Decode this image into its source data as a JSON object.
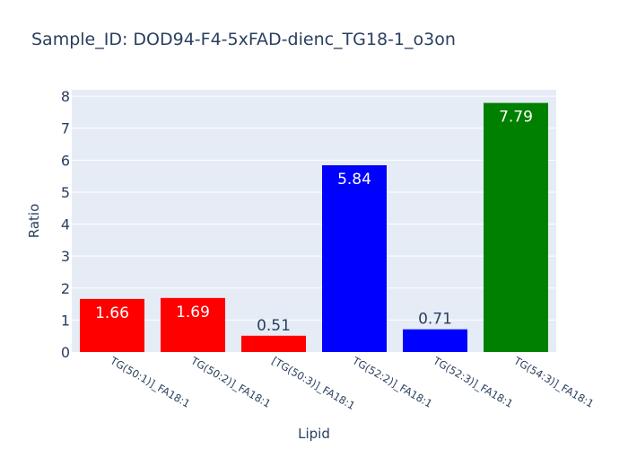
{
  "chart_data": {
    "type": "bar",
    "title": "Sample_ID: DOD94-F4-5xFAD-dienc_TG18-1_o3on",
    "xlabel": "Lipid",
    "ylabel": "Ratio",
    "categories": [
      "TG(50:1)]_FA18:1",
      "TG(50:2)]_FA18:1",
      "[TG(50:3)]_FA18:1",
      "TG(52:2)]_FA18:1",
      "TG(52:3)]_FA18:1",
      "TG(54:3)]_FA18:1"
    ],
    "values": [
      1.66,
      1.69,
      0.51,
      5.84,
      0.71,
      7.79
    ],
    "value_labels": [
      "1.66",
      "1.69",
      "0.51",
      "5.84",
      "0.71",
      "7.79"
    ],
    "bar_colors": [
      "#ff0000",
      "#ff0000",
      "#ff0000",
      "#0000ff",
      "#0000ff",
      "#008000"
    ],
    "yticks": [
      "0",
      "1",
      "2",
      "3",
      "4",
      "5",
      "6",
      "7",
      "8"
    ],
    "ylim": [
      0,
      8.2
    ],
    "grid": true,
    "plot_background": "#e5ecf6",
    "text_color": "#2a3f5f",
    "legend": "none"
  }
}
